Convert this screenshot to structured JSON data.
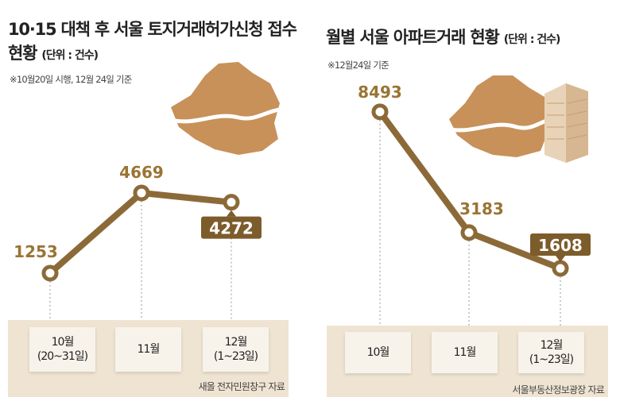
{
  "chart_data": [
    {
      "type": "line",
      "title": "10·15 대책 후 서울 토지거래허가신청 접수현황",
      "unit": "(단위 : 건수)",
      "note": "※10월20일 시행, 12월 24일 기준",
      "categories": [
        "10월\n(20~31일)",
        "11월",
        "12월\n(1~23일)"
      ],
      "category_lines": [
        [
          "10월",
          "(20~31일)"
        ],
        [
          "11월",
          ""
        ],
        [
          "12월",
          "(1~23일)"
        ]
      ],
      "values": [
        1253,
        4669,
        4272
      ],
      "highlight_index": 2,
      "source": "새올 전자민원창구 자료"
    },
    {
      "type": "line",
      "title": "월별 서울 아파트거래 현황",
      "unit": "(단위 : 건수)",
      "note": "※12월24일 기준",
      "categories": [
        "10월",
        "11월",
        "12월\n(1~23일)"
      ],
      "category_lines": [
        [
          "10월",
          ""
        ],
        [
          "11월",
          ""
        ],
        [
          "12월",
          "(1~23일)"
        ]
      ],
      "values": [
        8493,
        3183,
        1608
      ],
      "highlight_index": 2,
      "source": "서울부동산정보광장 자료"
    }
  ],
  "colors": {
    "line": "#8c6a38",
    "label": "#9a7434",
    "highlight_box": "#7d5c2c",
    "panel": "#efe4d2",
    "map": "#c8915a"
  }
}
